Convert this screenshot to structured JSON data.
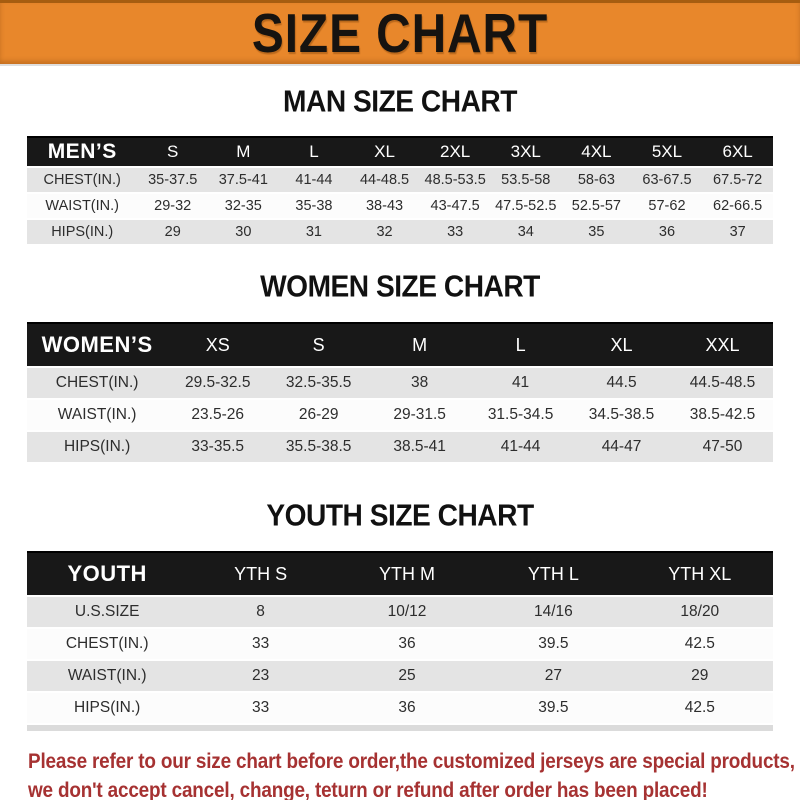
{
  "banner": {
    "title": "SIZE CHART",
    "bg_color": "#E8872B"
  },
  "sections": [
    {
      "heading": "MAN SIZE CHART",
      "table": {
        "title": "MEN’S",
        "columns": [
          "S",
          "M",
          "L",
          "XL",
          "2XL",
          "3XL",
          "4XL",
          "5XL",
          "6XL"
        ],
        "rows": [
          {
            "label": "CHEST(IN.)",
            "values": [
              "35-37.5",
              "37.5-41",
              "41-44",
              "44-48.5",
              "48.5-53.5",
              "53.5-58",
              "58-63",
              "63-67.5",
              "67.5-72"
            ]
          },
          {
            "label": "WAIST(IN.)",
            "values": [
              "29-32",
              "32-35",
              "35-38",
              "38-43",
              "43-47.5",
              "47.5-52.5",
              "52.5-57",
              "57-62",
              "62-66.5"
            ]
          },
          {
            "label": "HIPS(IN.)",
            "values": [
              "29",
              "30",
              "31",
              "32",
              "33",
              "34",
              "35",
              "36",
              "37"
            ]
          }
        ]
      }
    },
    {
      "heading": "WOMEN SIZE CHART",
      "table": {
        "title": "WOMEN’S",
        "columns": [
          "XS",
          "S",
          "M",
          "L",
          "XL",
          "XXL"
        ],
        "rows": [
          {
            "label": "CHEST(IN.)",
            "values": [
              "29.5-32.5",
              "32.5-35.5",
              "38",
              "41",
              "44.5",
              "44.5-48.5"
            ]
          },
          {
            "label": "WAIST(IN.)",
            "values": [
              "23.5-26",
              "26-29",
              "29-31.5",
              "31.5-34.5",
              "34.5-38.5",
              "38.5-42.5"
            ]
          },
          {
            "label": "HIPS(IN.)",
            "values": [
              "33-35.5",
              "35.5-38.5",
              "38.5-41",
              "41-44",
              "44-47",
              "47-50"
            ]
          }
        ]
      }
    },
    {
      "heading": "YOUTH SIZE CHART",
      "table": {
        "title": "YOUTH",
        "columns": [
          "YTH S",
          "YTH M",
          "YTH L",
          "YTH XL"
        ],
        "rows": [
          {
            "label": "U.S.SIZE",
            "values": [
              "8",
              "10/12",
              "14/16",
              "18/20"
            ]
          },
          {
            "label": "CHEST(IN.)",
            "values": [
              "33",
              "36",
              "39.5",
              "42.5"
            ]
          },
          {
            "label": "WAIST(IN.)",
            "values": [
              "23",
              "25",
              "27",
              "29"
            ]
          },
          {
            "label": "HIPS(IN.)",
            "values": [
              "33",
              "36",
              "39.5",
              "42.5"
            ]
          }
        ]
      }
    }
  ],
  "footer": {
    "line1": "Please refer to our size chart before order,the customized jerseys are special products,",
    "line2": "we don't accept cancel, change, teturn or refund after order has been placed!",
    "text_color": "#A63232"
  }
}
